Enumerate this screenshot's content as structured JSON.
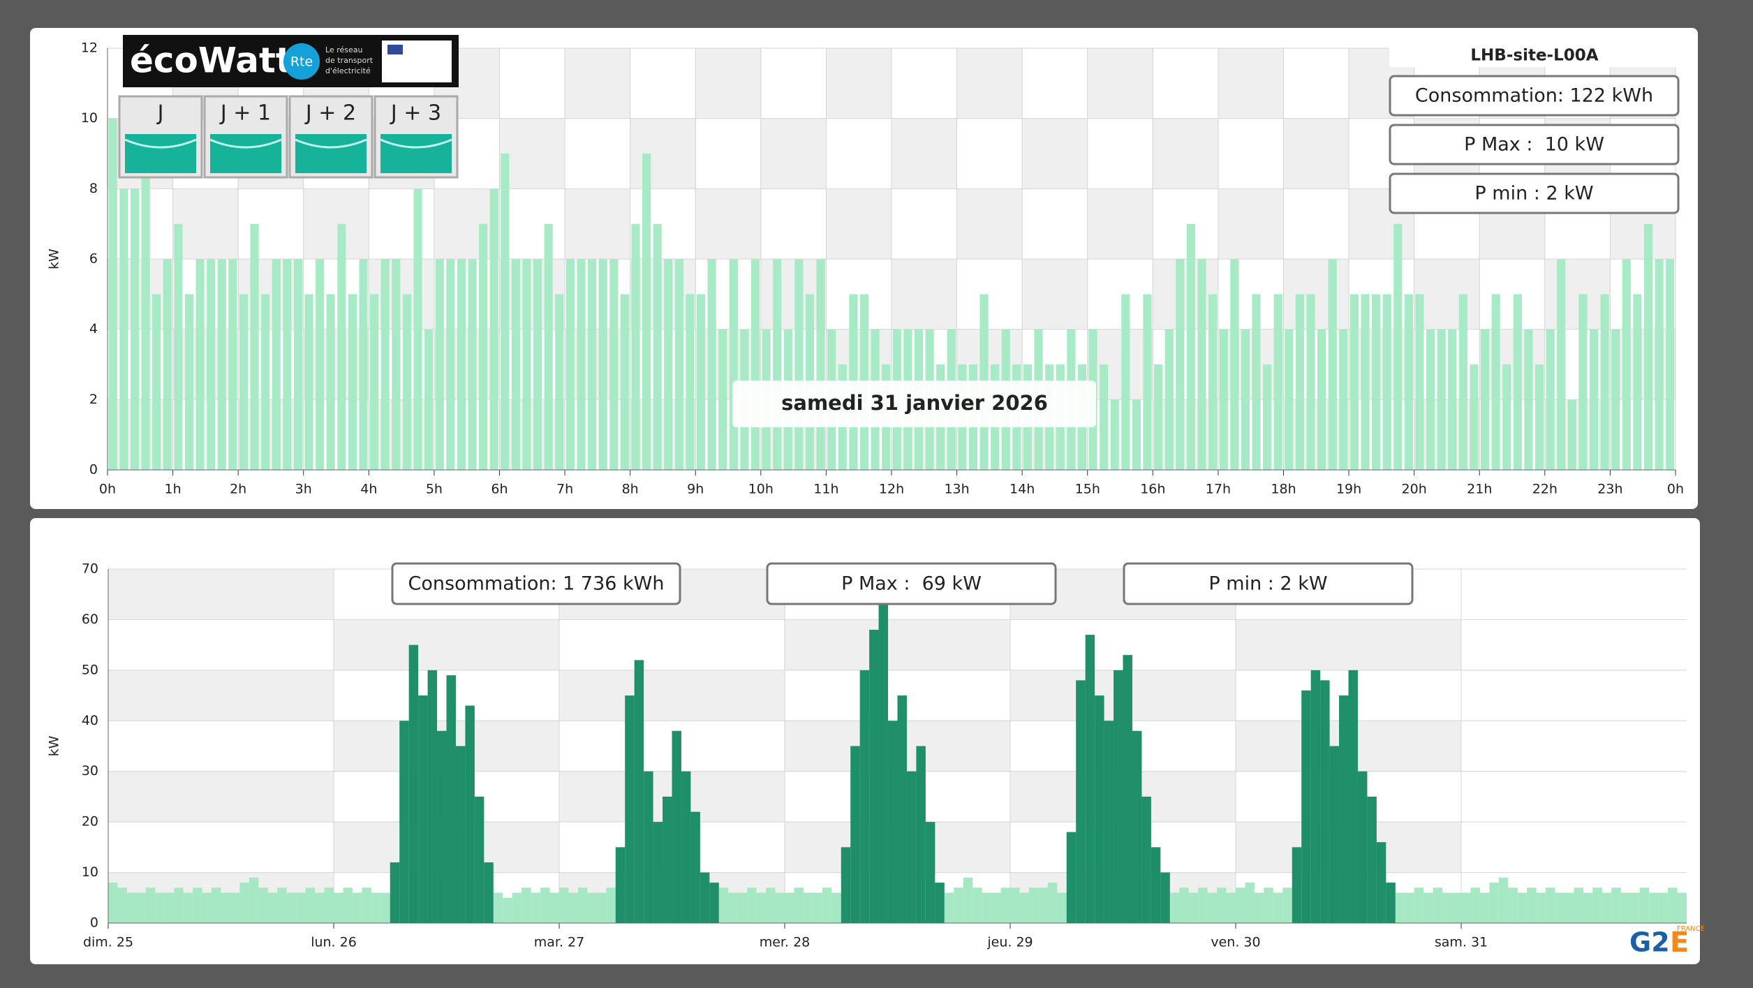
{
  "chart_data": [
    {
      "type": "bar",
      "title": "LHB-site-L00A",
      "ylabel": "kW",
      "color": "#a6ebc6",
      "annotations": [
        "Consommation: 122 kWh",
        "P Max :  10 kW",
        "P min : 2 kW"
      ],
      "date_label": "samedi 31 janvier 2026",
      "values": [
        10,
        8,
        8,
        9,
        5,
        6,
        7,
        5,
        6,
        6,
        6,
        6,
        5,
        7,
        5,
        6,
        6,
        6,
        5,
        6,
        5,
        7,
        5,
        6,
        5,
        6,
        6,
        5,
        8,
        4,
        6,
        6,
        6,
        6,
        7,
        8,
        9,
        6,
        6,
        6,
        7,
        5,
        6,
        6,
        6,
        6,
        6,
        5,
        7,
        9,
        7,
        6,
        6,
        5,
        5,
        6,
        4,
        6,
        4,
        6,
        4,
        6,
        4,
        6,
        5,
        6,
        4,
        3,
        5,
        5,
        4,
        3,
        4,
        4,
        4,
        4,
        3,
        4,
        3,
        3,
        5,
        3,
        4,
        3,
        3,
        4,
        3,
        3,
        4,
        3,
        4,
        3,
        2,
        5,
        2,
        5,
        3,
        4,
        6,
        7,
        6,
        5,
        4,
        6,
        4,
        5,
        3,
        5,
        4,
        5,
        5,
        4,
        6,
        4,
        5,
        5,
        5,
        5,
        7,
        5,
        5,
        4,
        4,
        4,
        5,
        3,
        4,
        5,
        3,
        5,
        4,
        3,
        4,
        6,
        2,
        5,
        4,
        5,
        4,
        6,
        5,
        7,
        6,
        6
      ],
      "xlim": [
        0,
        24
      ],
      "xticks": [
        {
          "value": 0,
          "label": "0h"
        },
        {
          "value": 1,
          "label": "1h"
        },
        {
          "value": 2,
          "label": "2h"
        },
        {
          "value": 3,
          "label": "3h"
        },
        {
          "value": 4,
          "label": "4h"
        },
        {
          "value": 5,
          "label": "5h"
        },
        {
          "value": 6,
          "label": "6h"
        },
        {
          "value": 7,
          "label": "7h"
        },
        {
          "value": 8,
          "label": "8h"
        },
        {
          "value": 9,
          "label": "9h"
        },
        {
          "value": 10,
          "label": "10h"
        },
        {
          "value": 11,
          "label": "11h"
        },
        {
          "value": 12,
          "label": "12h"
        },
        {
          "value": 13,
          "label": "13h"
        },
        {
          "value": 14,
          "label": "14h"
        },
        {
          "value": 15,
          "label": "15h"
        },
        {
          "value": 16,
          "label": "16h"
        },
        {
          "value": 17,
          "label": "17h"
        },
        {
          "value": 18,
          "label": "18h"
        },
        {
          "value": 19,
          "label": "19h"
        },
        {
          "value": 20,
          "label": "20h"
        },
        {
          "value": 21,
          "label": "21h"
        },
        {
          "value": 22,
          "label": "22h"
        },
        {
          "value": 23,
          "label": "23h"
        },
        {
          "value": 24,
          "label": "0h"
        }
      ],
      "ylim": [
        0,
        12
      ],
      "yticks": [
        0,
        2,
        4,
        6,
        8,
        10,
        12
      ],
      "grid": true
    },
    {
      "type": "bar",
      "ylabel": "kW",
      "annotations": [
        "Consommation: 1 736 kWh",
        "P Max :  69 kW",
        "P min : 2 kW"
      ],
      "series": [
        {
          "color": "#a6e8c4",
          "values": [
            8,
            7,
            6,
            6,
            7,
            6,
            6,
            7,
            6,
            7,
            6,
            7,
            6,
            6,
            8,
            9,
            7,
            6,
            7,
            6,
            6,
            7,
            6,
            7,
            6,
            7,
            6,
            7,
            6,
            6,
            null,
            null,
            null,
            null,
            null,
            null,
            null,
            null,
            null,
            null,
            null,
            6,
            5,
            6,
            7,
            6,
            7,
            6,
            7,
            6,
            7,
            6,
            6,
            7,
            null,
            null,
            null,
            null,
            null,
            null,
            null,
            null,
            null,
            null,
            null,
            7,
            6,
            6,
            7,
            6,
            7,
            6,
            6,
            7,
            6,
            6,
            7,
            6,
            null,
            null,
            null,
            null,
            null,
            null,
            null,
            null,
            null,
            null,
            null,
            6,
            7,
            9,
            7,
            6,
            6,
            7,
            7,
            6,
            7,
            7,
            8,
            6,
            null,
            null,
            null,
            null,
            null,
            null,
            null,
            null,
            null,
            null,
            null,
            6,
            7,
            6,
            7,
            6,
            7,
            6,
            7,
            8,
            6,
            7,
            6,
            7,
            null,
            null,
            null,
            null,
            null,
            null,
            null,
            null,
            null,
            null,
            null,
            6,
            6,
            7,
            6,
            7,
            6,
            6,
            6,
            7,
            6,
            8,
            9,
            7,
            6,
            7,
            6,
            7,
            6,
            6,
            7,
            6,
            7,
            6,
            7,
            6,
            6,
            7,
            6,
            6,
            7,
            6
          ]
        },
        {
          "color": "#1f8f6a",
          "values": [
            null,
            null,
            null,
            null,
            null,
            null,
            null,
            null,
            null,
            null,
            null,
            null,
            null,
            null,
            null,
            null,
            null,
            null,
            null,
            null,
            null,
            null,
            null,
            null,
            null,
            null,
            null,
            null,
            null,
            null,
            12,
            40,
            55,
            45,
            50,
            38,
            49,
            35,
            43,
            25,
            12,
            null,
            null,
            null,
            null,
            null,
            null,
            null,
            null,
            null,
            null,
            null,
            null,
            null,
            15,
            45,
            52,
            30,
            20,
            25,
            38,
            30,
            22,
            10,
            8,
            null,
            null,
            null,
            null,
            null,
            null,
            null,
            null,
            null,
            null,
            null,
            null,
            null,
            15,
            35,
            50,
            58,
            63,
            40,
            45,
            30,
            35,
            20,
            8,
            null,
            null,
            null,
            null,
            null,
            null,
            null,
            null,
            null,
            null,
            null,
            null,
            null,
            18,
            48,
            57,
            45,
            40,
            50,
            53,
            38,
            25,
            15,
            10,
            null,
            null,
            null,
            null,
            null,
            null,
            null,
            null,
            null,
            null,
            null,
            null,
            null,
            15,
            46,
            50,
            48,
            35,
            45,
            50,
            30,
            25,
            16,
            8,
            null,
            null,
            null,
            null,
            null,
            null,
            null,
            null,
            null,
            null,
            null,
            null,
            null,
            null,
            null,
            null,
            null,
            null,
            null,
            null,
            null,
            null,
            null,
            null,
            null,
            null,
            null,
            null,
            null,
            null,
            null
          ]
        }
      ],
      "xlim": [
        0,
        168
      ],
      "xticks": [
        {
          "value": 0,
          "label": "dim. 25"
        },
        {
          "value": 24,
          "label": "lun. 26"
        },
        {
          "value": 48,
          "label": "mar. 27"
        },
        {
          "value": 72,
          "label": "mer. 28"
        },
        {
          "value": 96,
          "label": "jeu. 29"
        },
        {
          "value": 120,
          "label": "ven. 30"
        },
        {
          "value": 144,
          "label": "sam. 31"
        }
      ],
      "ylim": [
        0,
        70
      ],
      "yticks": [
        0,
        10,
        20,
        30,
        40,
        50,
        60,
        70
      ],
      "grid": true
    }
  ],
  "ecowatt": {
    "logo": "écoWatt",
    "rte": "Rte",
    "rte_tagline": [
      "Le réseau",
      "de transport",
      "d'électricité"
    ],
    "days": [
      "J",
      "J + 1",
      "J + 2",
      "J + 3"
    ]
  },
  "brand": {
    "name": "G2",
    "mark": "E",
    "country": "FRANCE"
  }
}
